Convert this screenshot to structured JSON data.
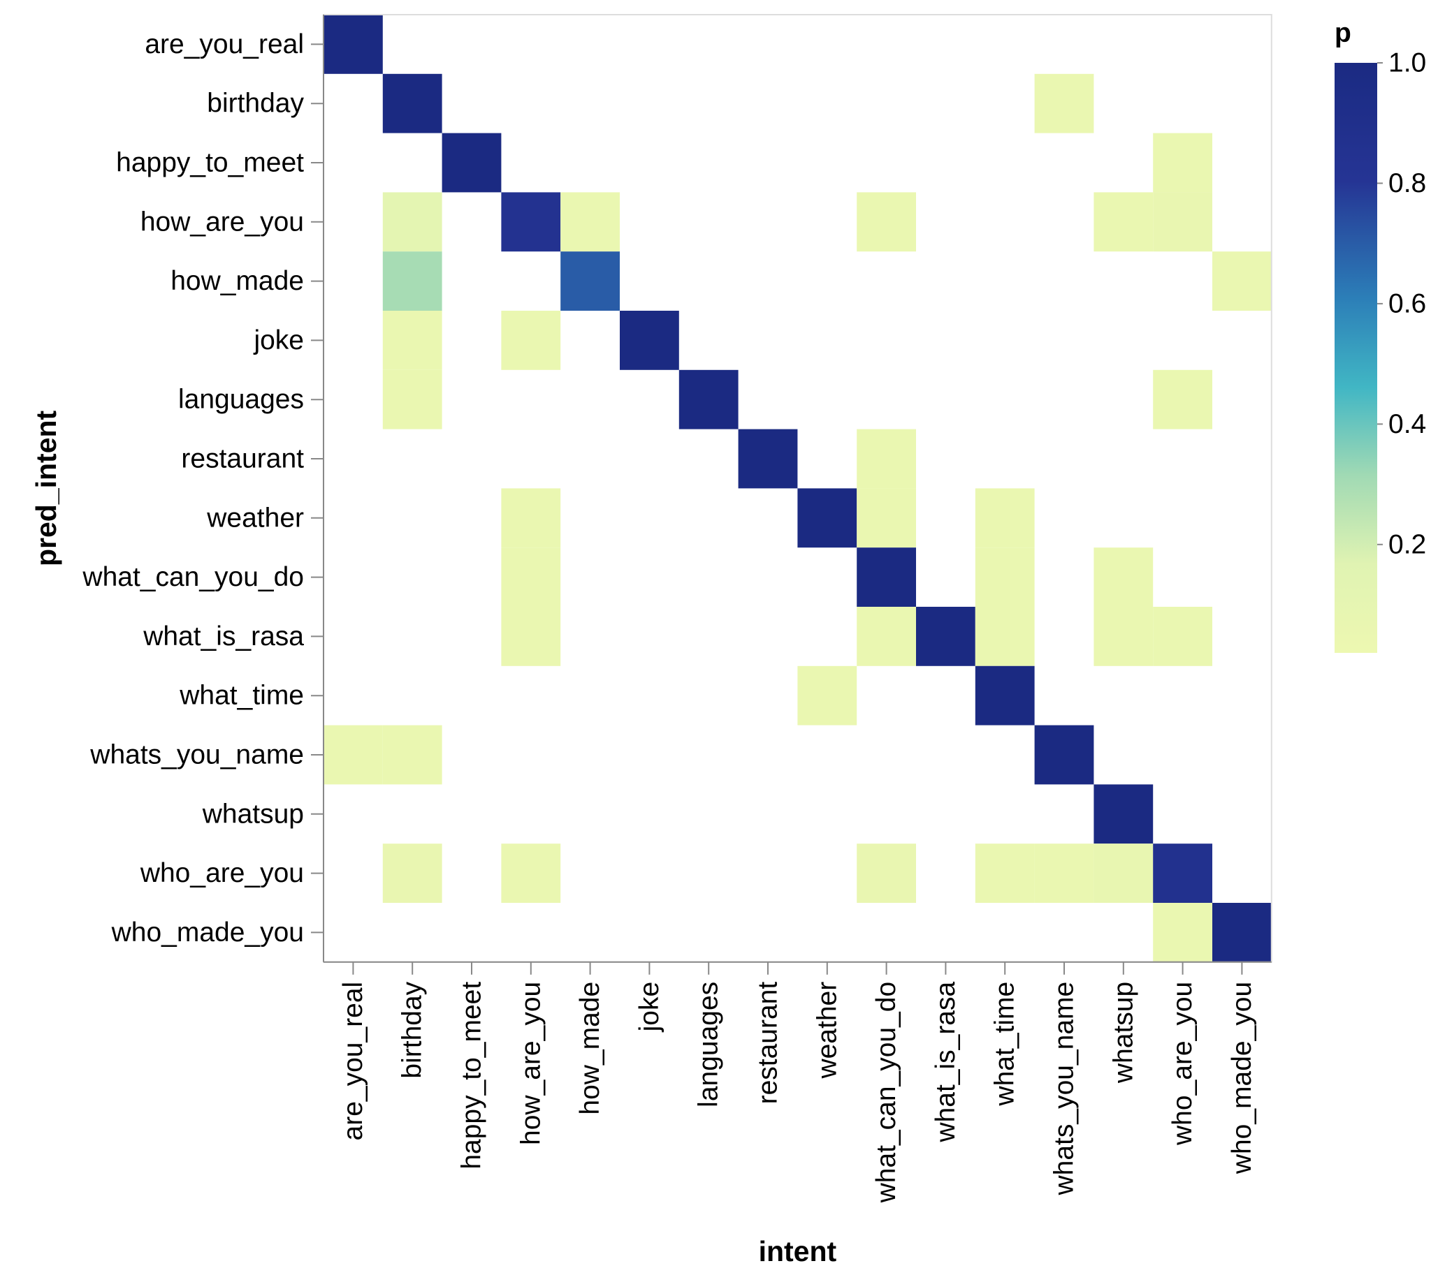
{
  "chart_data": {
    "type": "heatmap",
    "title": "",
    "xlabel": "intent",
    "ylabel": "pred_intent",
    "x_categories": [
      "are_you_real",
      "birthday",
      "happy_to_meet",
      "how_are_you",
      "how_made",
      "joke",
      "languages",
      "restaurant",
      "weather",
      "what_can_you_do",
      "what_is_rasa",
      "what_time",
      "whats_you_name",
      "whatsup",
      "who_are_you",
      "who_made_you"
    ],
    "y_categories": [
      "are_you_real",
      "birthday",
      "happy_to_meet",
      "how_are_you",
      "how_made",
      "joke",
      "languages",
      "restaurant",
      "weather",
      "what_can_you_do",
      "what_is_rasa",
      "what_time",
      "whats_you_name",
      "whatsup",
      "who_are_you",
      "who_made_you"
    ],
    "color_field": "p",
    "color_scheme": "yellowgreenblue",
    "color_domain": [
      0.02,
      1.0
    ],
    "legend": {
      "title": "p",
      "ticks": [
        "1.0",
        "0.8",
        "0.6",
        "0.4",
        "0.2"
      ],
      "tick_values": [
        1.0,
        0.8,
        0.6,
        0.4,
        0.2
      ],
      "position": "right"
    },
    "grid": false,
    "cells": [
      {
        "x": "are_you_real",
        "y": "are_you_real",
        "p": 1.0
      },
      {
        "x": "birthday",
        "y": "birthday",
        "p": 1.0
      },
      {
        "x": "whats_you_name",
        "y": "birthday",
        "p": 0.05
      },
      {
        "x": "happy_to_meet",
        "y": "happy_to_meet",
        "p": 1.0
      },
      {
        "x": "who_are_you",
        "y": "happy_to_meet",
        "p": 0.05
      },
      {
        "x": "birthday",
        "y": "how_are_you",
        "p": 0.12
      },
      {
        "x": "how_are_you",
        "y": "how_are_you",
        "p": 0.85
      },
      {
        "x": "how_made",
        "y": "how_are_you",
        "p": 0.05
      },
      {
        "x": "what_can_you_do",
        "y": "how_are_you",
        "p": 0.05
      },
      {
        "x": "whatsup",
        "y": "how_are_you",
        "p": 0.05
      },
      {
        "x": "who_are_you",
        "y": "how_are_you",
        "p": 0.07
      },
      {
        "x": "birthday",
        "y": "how_made",
        "p": 0.3
      },
      {
        "x": "how_made",
        "y": "how_made",
        "p": 0.7
      },
      {
        "x": "who_made_you",
        "y": "how_made",
        "p": 0.05
      },
      {
        "x": "birthday",
        "y": "joke",
        "p": 0.05
      },
      {
        "x": "how_are_you",
        "y": "joke",
        "p": 0.05
      },
      {
        "x": "joke",
        "y": "joke",
        "p": 1.0
      },
      {
        "x": "birthday",
        "y": "languages",
        "p": 0.05
      },
      {
        "x": "languages",
        "y": "languages",
        "p": 1.0
      },
      {
        "x": "who_are_you",
        "y": "languages",
        "p": 0.05
      },
      {
        "x": "restaurant",
        "y": "restaurant",
        "p": 1.0
      },
      {
        "x": "what_can_you_do",
        "y": "restaurant",
        "p": 0.05
      },
      {
        "x": "how_are_you",
        "y": "weather",
        "p": 0.05
      },
      {
        "x": "weather",
        "y": "weather",
        "p": 1.0
      },
      {
        "x": "what_can_you_do",
        "y": "weather",
        "p": 0.05
      },
      {
        "x": "what_time",
        "y": "weather",
        "p": 0.05
      },
      {
        "x": "how_are_you",
        "y": "what_can_you_do",
        "p": 0.05
      },
      {
        "x": "what_can_you_do",
        "y": "what_can_you_do",
        "p": 1.0
      },
      {
        "x": "what_time",
        "y": "what_can_you_do",
        "p": 0.05
      },
      {
        "x": "whatsup",
        "y": "what_can_you_do",
        "p": 0.05
      },
      {
        "x": "how_are_you",
        "y": "what_is_rasa",
        "p": 0.05
      },
      {
        "x": "what_can_you_do",
        "y": "what_is_rasa",
        "p": 0.05
      },
      {
        "x": "what_is_rasa",
        "y": "what_is_rasa",
        "p": 1.0
      },
      {
        "x": "what_time",
        "y": "what_is_rasa",
        "p": 0.05
      },
      {
        "x": "whatsup",
        "y": "what_is_rasa",
        "p": 0.05
      },
      {
        "x": "who_are_you",
        "y": "what_is_rasa",
        "p": 0.05
      },
      {
        "x": "weather",
        "y": "what_time",
        "p": 0.05
      },
      {
        "x": "what_time",
        "y": "what_time",
        "p": 1.0
      },
      {
        "x": "are_you_real",
        "y": "whats_you_name",
        "p": 0.05
      },
      {
        "x": "birthday",
        "y": "whats_you_name",
        "p": 0.05
      },
      {
        "x": "whats_you_name",
        "y": "whats_you_name",
        "p": 1.0
      },
      {
        "x": "whatsup",
        "y": "whatsup",
        "p": 1.0
      },
      {
        "x": "birthday",
        "y": "who_are_you",
        "p": 0.07
      },
      {
        "x": "how_are_you",
        "y": "who_are_you",
        "p": 0.05
      },
      {
        "x": "what_can_you_do",
        "y": "who_are_you",
        "p": 0.07
      },
      {
        "x": "what_time",
        "y": "who_are_you",
        "p": 0.05
      },
      {
        "x": "whats_you_name",
        "y": "who_are_you",
        "p": 0.05
      },
      {
        "x": "whatsup",
        "y": "who_are_you",
        "p": 0.08
      },
      {
        "x": "who_are_you",
        "y": "who_are_you",
        "p": 0.87
      },
      {
        "x": "who_are_you",
        "y": "who_made_you",
        "p": 0.05
      },
      {
        "x": "who_made_you",
        "y": "who_made_you",
        "p": 1.0
      }
    ]
  }
}
